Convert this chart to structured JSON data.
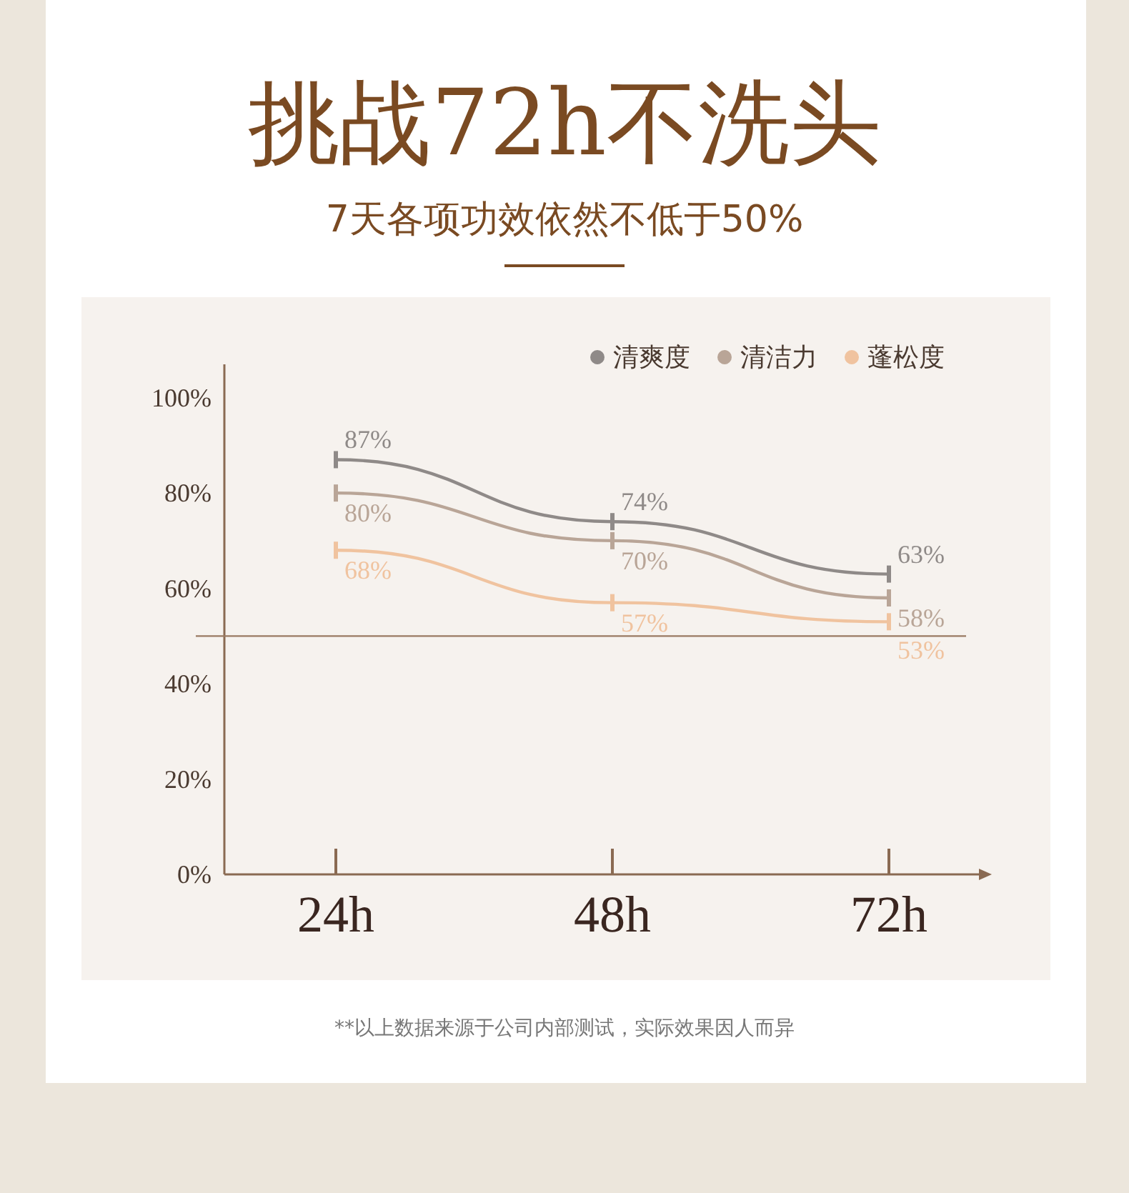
{
  "chart_data": {
    "type": "line",
    "title": "挑战72h不洗头",
    "subtitle": "7天各项功效依然不低于50%",
    "categories": [
      "24h",
      "48h",
      "72h"
    ],
    "series": [
      {
        "name": "清爽度",
        "color": "#8f8a88",
        "values": [
          87,
          74,
          63
        ],
        "value_labels": [
          "87%",
          "74%",
          "63%"
        ]
      },
      {
        "name": "清洁力",
        "color": "#b9a597",
        "values": [
          80,
          70,
          58
        ],
        "value_labels": [
          "80%",
          "70%",
          "58%"
        ]
      },
      {
        "name": "蓬松度",
        "color": "#f0c39f",
        "values": [
          68,
          57,
          53
        ],
        "value_labels": [
          "68%",
          "57%",
          "53%"
        ]
      }
    ],
    "ylim": [
      0,
      107
    ],
    "yticks": [
      {
        "value": 0,
        "label": "0%"
      },
      {
        "value": 20,
        "label": "20%"
      },
      {
        "value": 40,
        "label": "40%"
      },
      {
        "value": 60,
        "label": "60%"
      },
      {
        "value": 80,
        "label": "80%"
      },
      {
        "value": 100,
        "label": "100%"
      }
    ],
    "ref_lines": [
      {
        "axis": "y",
        "value": 50,
        "label": null,
        "color": "#9a7a62"
      }
    ],
    "legend": "top right",
    "line_style": "solid",
    "annotations": [
      "**以上数据来源于公司内部测试，实际效果因人而异"
    ]
  }
}
